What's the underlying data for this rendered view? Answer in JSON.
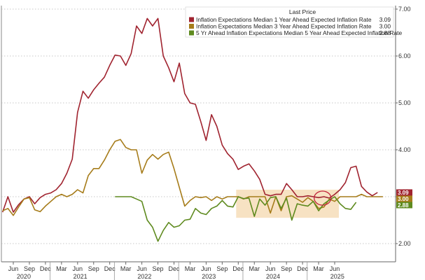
{
  "chart_data": {
    "type": "line",
    "title": "",
    "xlabel": "",
    "ylabel": "",
    "ylim": [
      1.85,
      7.0
    ],
    "y_ticks": [
      "2.00",
      "3.00",
      "4.00",
      "5.00",
      "6.00",
      "7.00"
    ],
    "y_axis_side": "right",
    "grid": "horizontal dotted",
    "x_month_ticks": [
      "Jun",
      "Sep",
      "Dec",
      "Mar",
      "Jun",
      "Sep",
      "Dec",
      "Mar",
      "Jun",
      "Sep",
      "Dec",
      "Mar",
      "Jun",
      "Sep",
      "Dec",
      "Mar",
      "Jun",
      "Sep",
      "Dec",
      "Mar",
      "Jun"
    ],
    "x_years": [
      "2020",
      "2021",
      "2022",
      "2023",
      "2024",
      "2025"
    ],
    "legend": {
      "position": "top-right",
      "header": "Last Price",
      "entries": [
        {
          "label": "Inflation Expectations Median 1 Year Ahead Expected Inflation Rate",
          "last": "3.09",
          "color": "#a0232f"
        },
        {
          "label": "Inflation Expectations Median 3 Year Ahead Expected Inflation Rate",
          "last": "3.00",
          "color": "#a67c1a"
        },
        {
          "label": "5 Yr Ahead Inflation Expectations Median 5 Year Ahead Expected Inflation Rate",
          "last": "2.88",
          "color": "#5e8a1e"
        }
      ]
    },
    "series": [
      {
        "name": "Inflation Expectations Median 1 Year Ahead Expected Inflation Rate",
        "color": "#a0232f",
        "start": "2020-04",
        "values": [
          2.67,
          3.0,
          2.67,
          2.83,
          2.95,
          3.0,
          2.85,
          2.98,
          3.05,
          3.08,
          3.15,
          3.28,
          3.5,
          3.8,
          4.8,
          5.25,
          5.1,
          5.28,
          5.42,
          5.55,
          5.8,
          6.02,
          6.0,
          5.8,
          6.05,
          6.64,
          6.48,
          6.8,
          6.64,
          6.8,
          6.0,
          5.75,
          5.45,
          5.85,
          5.2,
          5.0,
          4.97,
          4.6,
          4.2,
          4.75,
          4.5,
          4.1,
          3.92,
          3.8,
          3.58,
          3.65,
          3.7,
          3.55,
          3.37,
          3.05,
          3.02,
          3.05,
          3.05,
          3.28,
          3.15,
          3.0,
          3.0,
          3.02,
          3.0,
          2.98,
          3.0,
          2.97,
          3.05,
          3.15,
          3.3,
          3.62,
          3.65,
          3.22,
          3.1,
          3.02,
          3.09
        ]
      },
      {
        "name": "Inflation Expectations Median 3 Year Ahead Expected Inflation Rate",
        "color": "#a67c1a",
        "start": "2020-04",
        "values": [
          2.7,
          2.75,
          2.6,
          2.78,
          2.95,
          2.98,
          2.72,
          2.68,
          2.8,
          2.9,
          3.0,
          3.05,
          3.0,
          3.05,
          3.15,
          3.08,
          3.45,
          3.6,
          3.6,
          3.78,
          4.0,
          4.18,
          4.22,
          4.05,
          4.0,
          4.0,
          3.5,
          3.78,
          3.9,
          3.8,
          3.9,
          3.95,
          3.6,
          3.2,
          2.8,
          2.92,
          3.0,
          2.98,
          3.0,
          2.92,
          3.0,
          2.95,
          3.0,
          3.0,
          3.0,
          2.95,
          3.0,
          3.0,
          3.0,
          3.0,
          2.65,
          3.0,
          2.7,
          3.0,
          3.02,
          2.95,
          2.88,
          2.98,
          2.9,
          2.75,
          2.78,
          2.95,
          2.9,
          3.0,
          3.0,
          3.0,
          3.0,
          3.05,
          3.0,
          3.0,
          3.0,
          3.0
        ]
      },
      {
        "name": "5 Yr Ahead Inflation Expectations Median 5 Year Ahead Expected Inflation Rate",
        "color": "#5e8a1e",
        "start": "2022-01",
        "values": [
          3.0,
          3.0,
          3.0,
          3.0,
          2.95,
          2.9,
          2.5,
          2.35,
          2.05,
          2.28,
          2.45,
          2.35,
          2.38,
          2.5,
          2.52,
          2.75,
          2.65,
          2.62,
          2.75,
          2.8,
          2.92,
          2.8,
          2.78,
          3.0,
          2.96,
          2.97,
          2.58,
          2.95,
          2.82,
          2.98,
          3.0,
          2.75,
          2.97,
          2.5,
          2.85,
          2.82,
          2.8,
          2.9,
          2.7,
          2.85,
          2.93,
          3.0,
          2.85,
          2.75,
          2.73,
          2.88
        ]
      }
    ],
    "annotations": [
      {
        "type": "ellipse",
        "target": "1 Year Ahead series peak",
        "date": "2025-04"
      },
      {
        "type": "shaded-band",
        "x_from": "2023-12",
        "x_to": "2025-06",
        "y_from": 2.55,
        "y_to": 3.15
      }
    ]
  }
}
